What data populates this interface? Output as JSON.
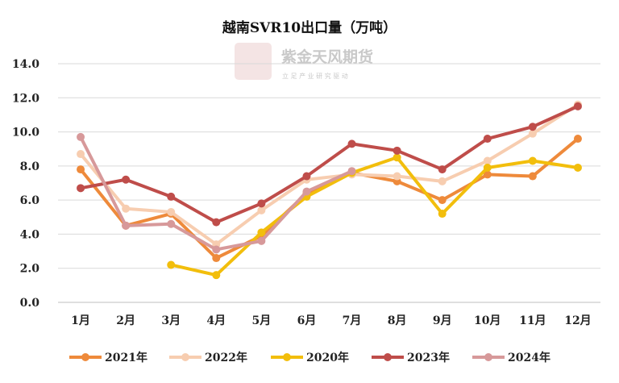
{
  "watermark": {
    "brand": "紫金天风期货",
    "slogan": "立 足 产 业   研 究 驱 动",
    "seal_text": "紫天金风"
  },
  "chart_data": {
    "type": "line",
    "title": "越南SVR10出口量（万吨）",
    "xlabel": "",
    "ylabel": "",
    "categories": [
      "1月",
      "2月",
      "3月",
      "4月",
      "5月",
      "6月",
      "7月",
      "8月",
      "9月",
      "10月",
      "11月",
      "12月"
    ],
    "ylim": [
      0,
      14
    ],
    "yticks": [
      "0.0",
      "2.0",
      "4.0",
      "6.0",
      "8.0",
      "10.0",
      "12.0",
      "14.0"
    ],
    "grid": true,
    "legend_position": "bottom",
    "series": [
      {
        "name": "2021年",
        "color": "#ee8a3b",
        "values": [
          7.8,
          4.5,
          5.2,
          2.6,
          3.9,
          6.4,
          7.6,
          7.1,
          6.0,
          7.5,
          7.4,
          9.6
        ]
      },
      {
        "name": "2022年",
        "color": "#f7cdb0",
        "values": [
          8.7,
          5.5,
          5.3,
          3.4,
          5.4,
          7.2,
          7.5,
          7.4,
          7.1,
          8.3,
          9.9,
          11.6
        ]
      },
      {
        "name": "2020年",
        "color": "#f2be0c",
        "values": [
          null,
          null,
          2.2,
          1.6,
          4.1,
          6.2,
          7.6,
          8.5,
          5.2,
          7.9,
          8.3,
          7.9
        ]
      },
      {
        "name": "2023年",
        "color": "#bf4d4a",
        "values": [
          6.7,
          7.2,
          6.2,
          4.7,
          5.8,
          7.4,
          9.3,
          8.9,
          7.8,
          9.6,
          10.3,
          11.5
        ]
      },
      {
        "name": "2024年",
        "color": "#d7999a",
        "values": [
          9.7,
          4.5,
          4.6,
          3.1,
          3.6,
          6.5,
          7.7,
          null,
          null,
          null,
          null,
          null
        ]
      }
    ]
  }
}
